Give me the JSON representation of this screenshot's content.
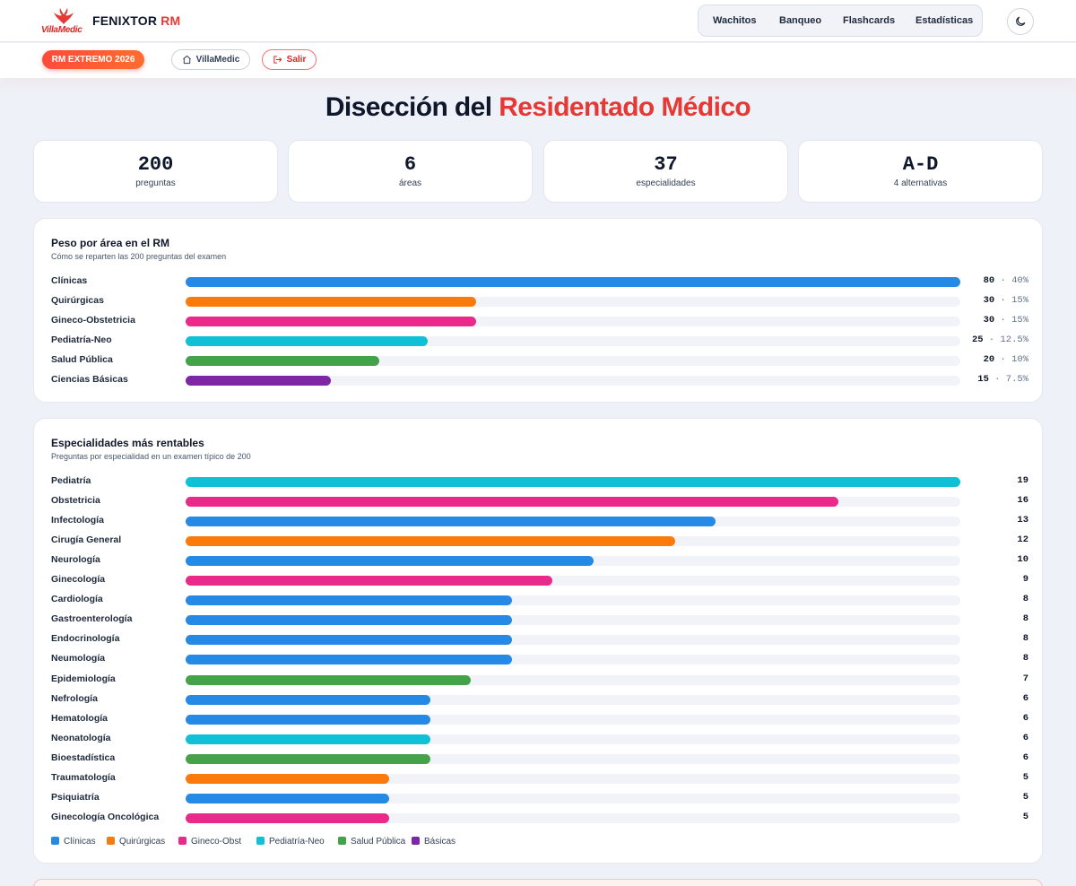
{
  "colors": {
    "clinicas": "#2589e6",
    "quirurgicas": "#fb7a0c",
    "gineco": "#e92a8a",
    "pediatria": "#0fc0d6",
    "salud_publica": "#44a348",
    "basicas": "#7b27a6"
  },
  "logo": {
    "icon": "phoenix-icon",
    "word": "VillaMedic"
  },
  "brand": {
    "name": "FENIXTOR",
    "suffix": "RM"
  },
  "nav": {
    "items": [
      "Wachitos",
      "Banqueo",
      "Flashcards",
      "Estadísticas"
    ],
    "theme_icon": "moon-icon"
  },
  "subnav": {
    "badge": "RM EXTREMO 2026",
    "home": {
      "label": "VillaMedic",
      "icon": "home-icon"
    },
    "logout": {
      "label": "Salir",
      "icon": "logout-icon"
    }
  },
  "page": {
    "title_main": "Disección del",
    "title_accent": "Residentado Médico"
  },
  "stats": [
    {
      "value": "200",
      "label": "preguntas"
    },
    {
      "value": "6",
      "label": "áreas"
    },
    {
      "value": "37",
      "label": "especialidades"
    },
    {
      "value": "A-D",
      "label": "4 alternativas"
    }
  ],
  "areas": {
    "title": "Peso por área en el RM",
    "subtitle": "Cómo se reparten las 200 preguntas del examen",
    "max": 80,
    "items": [
      {
        "label": "Clínicas",
        "count": "80",
        "percent": "40%",
        "value": 80,
        "color": "clinicas"
      },
      {
        "label": "Quirúrgicas",
        "count": "30",
        "percent": "15%",
        "value": 30,
        "color": "quirurgicas"
      },
      {
        "label": "Gineco-Obstetricia",
        "count": "30",
        "percent": "15%",
        "value": 30,
        "color": "gineco"
      },
      {
        "label": "Pediatría-Neo",
        "count": "25",
        "percent": "12.5%",
        "value": 25,
        "color": "pediatria"
      },
      {
        "label": "Salud Pública",
        "count": "20",
        "percent": "10%",
        "value": 20,
        "color": "salud_publica"
      },
      {
        "label": "Ciencias Básicas",
        "count": "15",
        "percent": "7.5%",
        "value": 15,
        "color": "basicas"
      }
    ]
  },
  "specialties": {
    "title": "Especialidades más rentables",
    "subtitle": "Preguntas por especialidad en un examen típico de 200",
    "max": 19,
    "items": [
      {
        "label": "Pediatría",
        "value": 19,
        "color": "pediatria"
      },
      {
        "label": "Obstetricia",
        "value": 16,
        "color": "gineco"
      },
      {
        "label": "Infectología",
        "value": 13,
        "color": "clinicas"
      },
      {
        "label": "Cirugía General",
        "value": 12,
        "color": "quirurgicas"
      },
      {
        "label": "Neurología",
        "value": 10,
        "color": "clinicas"
      },
      {
        "label": "Ginecología",
        "value": 9,
        "color": "gineco"
      },
      {
        "label": "Cardiología",
        "value": 8,
        "color": "clinicas"
      },
      {
        "label": "Gastroenterología",
        "value": 8,
        "color": "clinicas"
      },
      {
        "label": "Endocrinología",
        "value": 8,
        "color": "clinicas"
      },
      {
        "label": "Neumología",
        "value": 8,
        "color": "clinicas"
      },
      {
        "label": "Epidemiología",
        "value": 7,
        "color": "salud_publica"
      },
      {
        "label": "Nefrología",
        "value": 6,
        "color": "clinicas"
      },
      {
        "label": "Hematología",
        "value": 6,
        "color": "clinicas"
      },
      {
        "label": "Neonatología",
        "value": 6,
        "color": "pediatria"
      },
      {
        "label": "Bioestadística",
        "value": 6,
        "color": "salud_publica"
      },
      {
        "label": "Traumatología",
        "value": 5,
        "color": "quirurgicas"
      },
      {
        "label": "Psiquiatría",
        "value": 5,
        "color": "clinicas"
      },
      {
        "label": "Ginecología Oncológica",
        "value": 5,
        "color": "gineco"
      }
    ],
    "legend": [
      {
        "label": "Clínicas",
        "color": "clinicas"
      },
      {
        "label": "Quirúrgicas",
        "color": "quirurgicas"
      },
      {
        "label": "Gineco-Obst",
        "color": "gineco"
      },
      {
        "label": "Pediatría-Neo",
        "color": "pediatria"
      },
      {
        "label": "Salud Pública",
        "color": "salud_publica"
      },
      {
        "label": "Básicas",
        "color": "basicas"
      }
    ]
  }
}
